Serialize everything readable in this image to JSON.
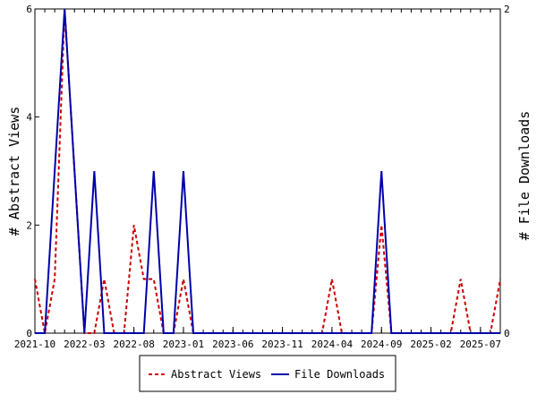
{
  "chart_data": {
    "type": "line",
    "x": [
      "2021-10",
      "2021-11",
      "2021-12",
      "2022-01",
      "2022-02",
      "2022-03",
      "2022-04",
      "2022-05",
      "2022-06",
      "2022-07",
      "2022-08",
      "2022-09",
      "2022-10",
      "2022-11",
      "2022-12",
      "2023-01",
      "2023-02",
      "2023-03",
      "2023-04",
      "2023-05",
      "2023-06",
      "2023-07",
      "2023-08",
      "2023-09",
      "2023-10",
      "2023-11",
      "2023-12",
      "2024-01",
      "2024-02",
      "2024-03",
      "2024-04",
      "2024-05",
      "2024-06",
      "2024-07",
      "2024-08",
      "2024-09",
      "2024-10",
      "2024-11",
      "2024-12",
      "2025-01",
      "2025-02",
      "2025-03",
      "2025-04",
      "2025-05",
      "2025-06",
      "2025-07",
      "2025-08",
      "2025-09"
    ],
    "x_tick_labels": [
      "2021-10",
      "2022-03",
      "2022-08",
      "2023-01",
      "2023-06",
      "2023-11",
      "2024-04",
      "2024-09",
      "2025-02",
      "2025-07"
    ],
    "series": [
      {
        "name": "Abstract Views",
        "axis": "left",
        "color": "#cc0000",
        "dash": true,
        "values": [
          1,
          0,
          1,
          6,
          3,
          0,
          0,
          1,
          0,
          0,
          2,
          1,
          1,
          0,
          0,
          1,
          0,
          0,
          0,
          0,
          0,
          0,
          0,
          0,
          0,
          0,
          0,
          0,
          0,
          0,
          1,
          0,
          0,
          0,
          0,
          2,
          0,
          0,
          0,
          0,
          0,
          0,
          0,
          1,
          0,
          0,
          0,
          1
        ]
      },
      {
        "name": "File Downloads",
        "axis": "right",
        "color": "#0000aa",
        "dash": false,
        "values": [
          0,
          0,
          1,
          2,
          1,
          0,
          1,
          0,
          0,
          0,
          0,
          0,
          1,
          0,
          0,
          1,
          0,
          0,
          0,
          0,
          0,
          0,
          0,
          0,
          0,
          0,
          0,
          0,
          0,
          0,
          0,
          0,
          0,
          0,
          0,
          1,
          0,
          0,
          0,
          0,
          0,
          0,
          0,
          0,
          0,
          0,
          0,
          0
        ]
      }
    ],
    "y_left": {
      "label": "# Abstract Views",
      "min": 0,
      "max": 6,
      "ticks": [
        0,
        2,
        4,
        6
      ]
    },
    "y_right": {
      "label": "# File Downloads",
      "min": 0,
      "max": 2,
      "ticks": [
        0,
        2
      ]
    },
    "legend": {
      "position": "bottom-center"
    },
    "grid": false
  }
}
